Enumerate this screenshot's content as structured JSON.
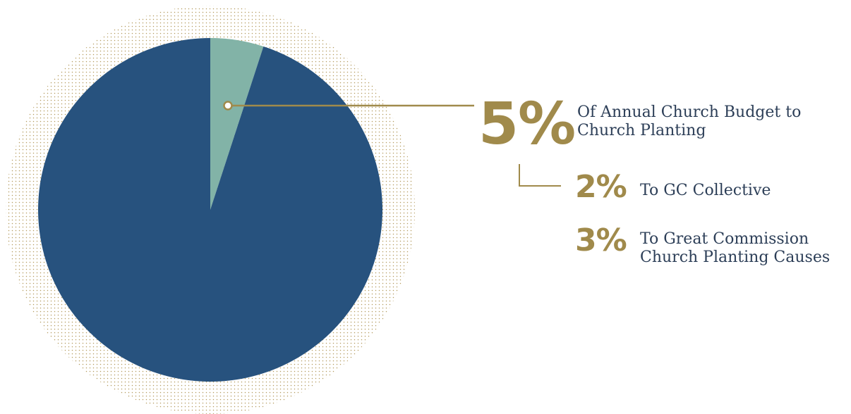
{
  "colors": {
    "main_slice": "#27527e",
    "highlight_slice": "#82b3a7",
    "accent": "#a08a4b",
    "text": "#2c3e57",
    "dot_pattern": "#b59b5f"
  },
  "chart_data": {
    "type": "pie",
    "start_angle": "top",
    "direction": "clockwise",
    "slices": [
      {
        "value": 5,
        "color": "#82b3a7",
        "highlighted": true
      },
      {
        "value": 95,
        "color": "#27527e",
        "highlighted": false
      }
    ]
  },
  "callout": {
    "main_value": "5%",
    "main_label_line1": "Of Annual Church Budget to",
    "main_label_line2": "Church Planting",
    "breakdown": [
      {
        "value": "2%",
        "label_line1": "To GC Collective",
        "label_line2": ""
      },
      {
        "value": "3%",
        "label_line1": "To Great Commission",
        "label_line2": "Church Planting Causes"
      }
    ]
  }
}
